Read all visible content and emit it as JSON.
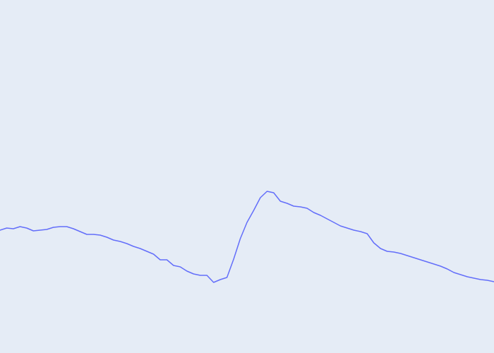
{
  "colors": {
    "background": "#e5ecf6",
    "series_line": "#636efa"
  },
  "chart_data": {
    "type": "line",
    "title": "",
    "xlabel": "",
    "ylabel": "",
    "grid": false,
    "legend": "none",
    "xlim": [
      0,
      74
    ],
    "ylim": [
      0,
      100
    ],
    "x": [
      0,
      1,
      2,
      3,
      4,
      5,
      6,
      7,
      8,
      9,
      10,
      11,
      12,
      13,
      14,
      15,
      16,
      17,
      18,
      19,
      20,
      21,
      22,
      23,
      24,
      25,
      26,
      27,
      28,
      29,
      30,
      31,
      32,
      33,
      34,
      35,
      36,
      37,
      38,
      39,
      40,
      41,
      42,
      43,
      44,
      45,
      46,
      47,
      48,
      49,
      50,
      51,
      52,
      53,
      54,
      55,
      56,
      57,
      58,
      59,
      60,
      61,
      62,
      63,
      64,
      65,
      66,
      67,
      68,
      69,
      70,
      71,
      72,
      73,
      74
    ],
    "series": [
      {
        "values": [
          34.8,
          35.4,
          35.2,
          35.8,
          35.4,
          34.6,
          34.8,
          35.0,
          35.6,
          35.8,
          35.8,
          35.2,
          34.4,
          33.6,
          33.6,
          33.4,
          32.8,
          32.0,
          31.6,
          31.0,
          30.2,
          29.6,
          28.8,
          28.0,
          26.4,
          26.4,
          24.8,
          24.4,
          23.2,
          22.4,
          22.0,
          22.0,
          20.0,
          20.8,
          21.4,
          26.6,
          32.4,
          37.0,
          40.4,
          44.0,
          45.8,
          45.4,
          43.0,
          42.4,
          41.6,
          41.4,
          41.0,
          39.8,
          39.0,
          38.0,
          37.0,
          36.0,
          35.4,
          34.8,
          34.4,
          33.8,
          31.2,
          29.6,
          28.8,
          28.6,
          28.2,
          27.6,
          27.0,
          26.4,
          25.8,
          25.2,
          24.6,
          23.8,
          22.8,
          22.2,
          21.6,
          21.2,
          20.8,
          20.6,
          20.2
        ]
      }
    ]
  }
}
